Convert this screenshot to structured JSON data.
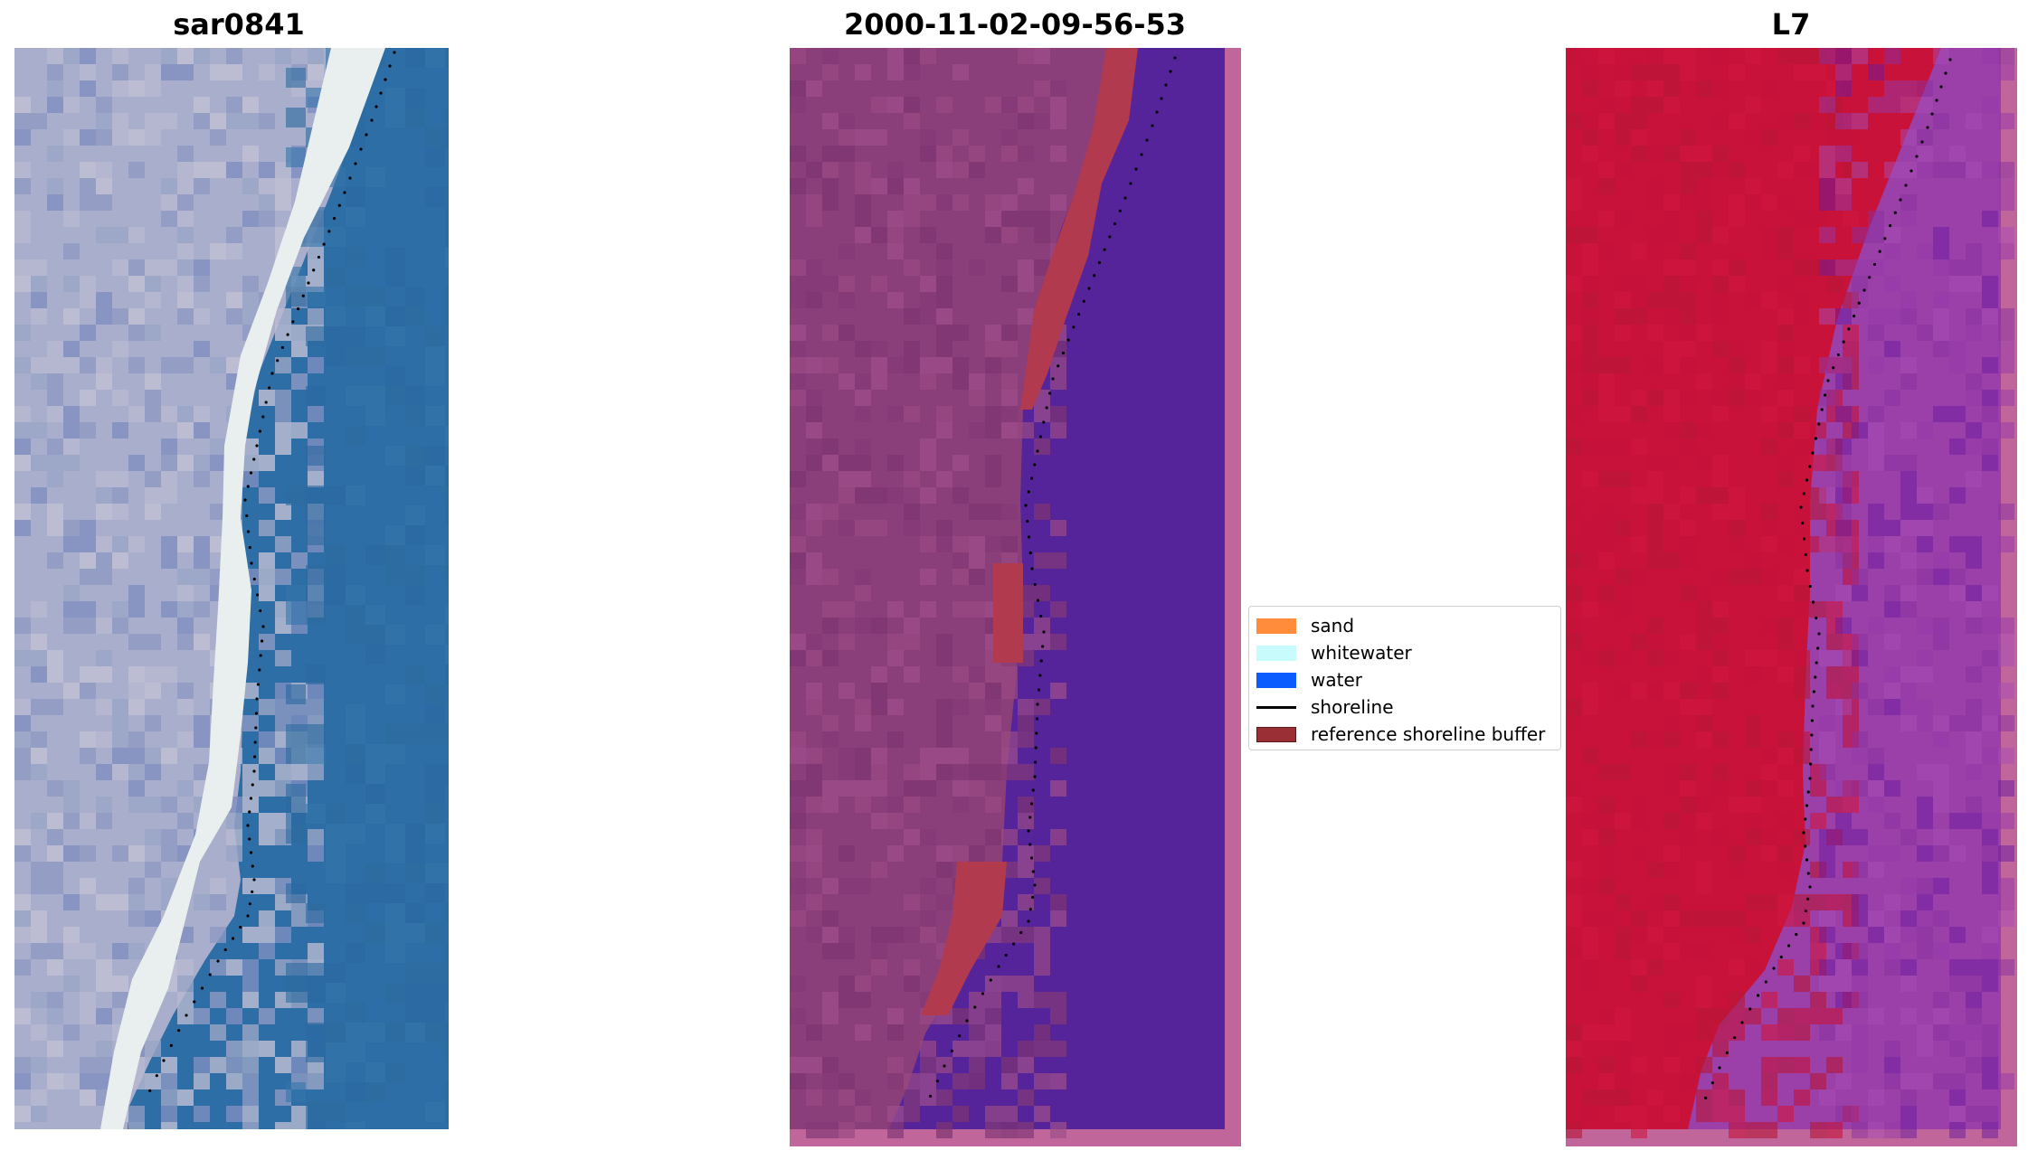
{
  "panels": [
    {
      "title": "sar0841"
    },
    {
      "title": "2000-11-02-09-56-53"
    },
    {
      "title": "L7"
    }
  ],
  "legend": {
    "items": [
      {
        "label": "sand",
        "color": "#ff8c3a",
        "kind": "patch"
      },
      {
        "label": "whitewater",
        "color": "#c8fbfb",
        "kind": "patch"
      },
      {
        "label": "water",
        "color": "#0a5cff",
        "kind": "patch"
      },
      {
        "label": "shoreline",
        "color": "#000000",
        "kind": "line"
      },
      {
        "label": "reference shoreline buffer",
        "color": "#9b2f36",
        "kind": "patch"
      }
    ]
  },
  "colors": {
    "rgb_sand": "#a8aecb",
    "rgb_surf": "#e8efee",
    "rgb_water": "#2e6ea6",
    "class_land": "#8a3f7a",
    "class_water": "#55249a",
    "class_buffer": "#b23a4e",
    "class_border": "#c0669b",
    "l7_land": "#c8123a",
    "l7_water": "#9a40a8"
  }
}
